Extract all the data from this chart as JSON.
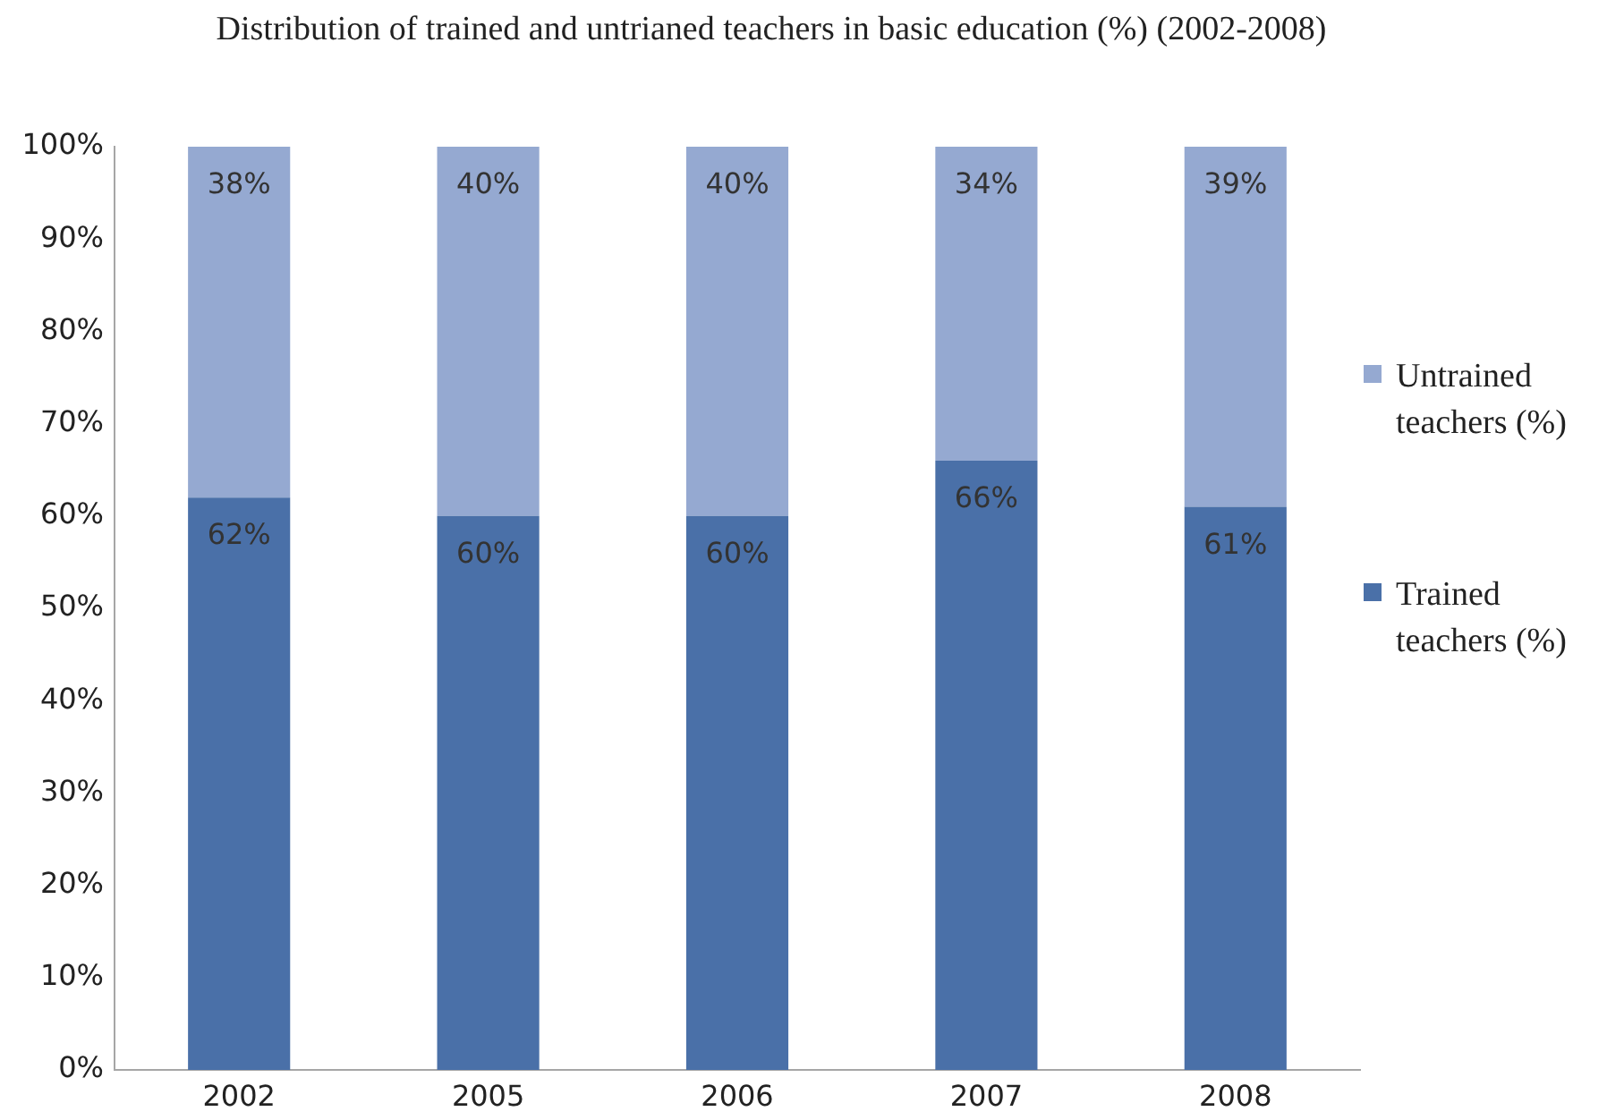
{
  "chart_data": {
    "type": "bar",
    "title": "Distribution of trained and untrianed teachers in basic education (%) (2002-2008)",
    "categories": [
      "2002",
      "2005",
      "2006",
      "2007",
      "2008"
    ],
    "stacked": true,
    "series": [
      {
        "name": "Trained teachers (%)",
        "color": "#4a70a8",
        "values": [
          62,
          60,
          60,
          66,
          61
        ],
        "value_labels": [
          "62%",
          "60%",
          "60%",
          "66%",
          "61%"
        ]
      },
      {
        "name": "Untrained teachers (%)",
        "color": "#95a9d1",
        "values": [
          38,
          40,
          40,
          34,
          39
        ],
        "value_labels": [
          "38%",
          "40%",
          "40%",
          "34%",
          "39%"
        ]
      }
    ],
    "ylim": [
      0,
      100
    ],
    "yticks": [
      {
        "value": 0,
        "label": "0%"
      },
      {
        "value": 10,
        "label": "10%"
      },
      {
        "value": 20,
        "label": "20%"
      },
      {
        "value": 30,
        "label": "30%"
      },
      {
        "value": 40,
        "label": "40%"
      },
      {
        "value": 50,
        "label": "50%"
      },
      {
        "value": 60,
        "label": "60%"
      },
      {
        "value": 70,
        "label": "70%"
      },
      {
        "value": 80,
        "label": "80%"
      },
      {
        "value": 90,
        "label": "90%"
      },
      {
        "value": 100,
        "label": "100%"
      }
    ],
    "grid": false,
    "legend": "right"
  }
}
